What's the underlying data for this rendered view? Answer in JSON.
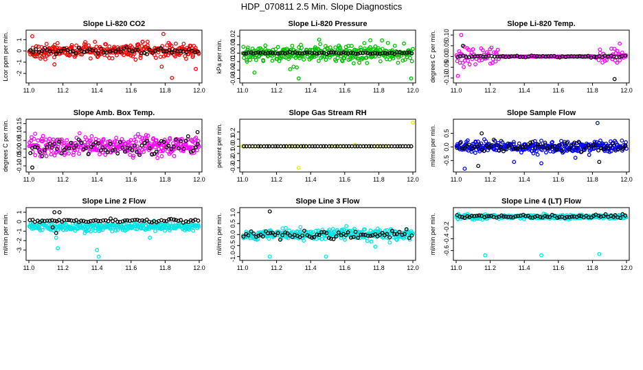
{
  "page_title": "HDP_070811  2.5 Min. Slope Diagnostics",
  "colors": {
    "black": "#000000",
    "red": "#ff0000",
    "green": "#00c000",
    "magenta": "#ff00ff",
    "yellow": "#e8e800",
    "blue": "#0000ff",
    "cyan": "#00e5e5"
  },
  "chart_data": [
    {
      "type": "scatter",
      "title": "Slope Li-820 CO2",
      "ylabel": "Lcor ppm per min.",
      "xlim": [
        11.0,
        12.0
      ],
      "ylim": [
        -2.6,
        1.6
      ],
      "x_ticks": [
        11.0,
        11.2,
        11.4,
        11.6,
        11.8,
        12.0
      ],
      "x_tick_labels": [
        "11.0",
        "11.2",
        "11.4",
        "11.6",
        "11.8",
        "12.0"
      ],
      "y_ticks": [
        -2,
        -1,
        0,
        1
      ],
      "y_tick_labels": [
        "-2",
        "-1",
        "0",
        "1"
      ],
      "series": [
        {
          "name": "main",
          "color": "red",
          "center": 0.0,
          "spread": 0.5,
          "count": 320,
          "outliers": [
            [
              11.02,
              1.3
            ],
            [
              11.79,
              1.5
            ],
            [
              11.78,
              -1.4
            ],
            [
              11.84,
              -2.4
            ],
            [
              11.98,
              -1.6
            ],
            [
              11.15,
              -1.2
            ]
          ]
        },
        {
          "name": "reference",
          "color": "black",
          "center": 0.0,
          "spread": 0.25,
          "count": 60
        }
      ]
    },
    {
      "type": "scatter",
      "title": "Slope Li-820 Pressure",
      "ylabel": "kPa per min.",
      "xlim": [
        11.0,
        12.0
      ],
      "ylim": [
        -0.032,
        0.024
      ],
      "x_ticks": [
        11.0,
        11.2,
        11.4,
        11.6,
        11.8,
        12.0
      ],
      "x_tick_labels": [
        "11.0",
        "11.2",
        "11.4",
        "11.6",
        "11.8",
        "12.0"
      ],
      "y_ticks": [
        -0.03,
        -0.02,
        -0.01,
        0.0,
        0.01,
        0.02
      ],
      "y_tick_labels": [
        "-0.03",
        "-0.02",
        "-0.01",
        "0.00",
        "0.01",
        "0.02"
      ],
      "series": [
        {
          "name": "main",
          "color": "green",
          "center": 0.0,
          "spread": 0.008,
          "count": 320,
          "outliers": [
            [
              11.07,
              -0.023
            ],
            [
              11.33,
              -0.03
            ],
            [
              11.45,
              0.016
            ],
            [
              11.99,
              -0.03
            ],
            [
              11.28,
              -0.019
            ]
          ]
        },
        {
          "name": "reference",
          "color": "black",
          "center": 0.0,
          "spread": 0.001,
          "count": 70
        }
      ]
    },
    {
      "type": "scatter",
      "title": "Slope Li-820 Temp.",
      "ylabel": "degrees C per min.",
      "xlim": [
        11.0,
        12.0
      ],
      "ylim": [
        -0.11,
        0.11
      ],
      "x_ticks": [
        11.0,
        11.2,
        11.4,
        11.6,
        11.8,
        12.0
      ],
      "x_tick_labels": [
        "11.0",
        "11.2",
        "11.4",
        "11.6",
        "11.8",
        "12.0"
      ],
      "y_ticks": [
        -0.1,
        -0.05,
        0.0,
        0.05,
        0.1
      ],
      "y_tick_labels": [
        "-0.10",
        "-0.05",
        "0.00",
        "0.05",
        "0.10"
      ],
      "series": [
        {
          "name": "main",
          "color": "magenta",
          "center": 0.0,
          "spread": 0.03,
          "count": 220,
          "edge_spread": true,
          "outliers": [
            [
              11.01,
              -0.09
            ],
            [
              11.03,
              0.1
            ],
            [
              11.96,
              0.06
            ]
          ]
        },
        {
          "name": "reference",
          "color": "black",
          "center": 0.0,
          "spread": 0.004,
          "count": 60,
          "outliers": [
            [
              11.93,
              -0.105
            ],
            [
              11.04,
              0.05
            ]
          ]
        }
      ]
    },
    {
      "type": "scatter",
      "title": "Slope Amb. Box Temp.",
      "ylabel": "degrees C per min.",
      "xlim": [
        11.0,
        12.0
      ],
      "ylim": [
        -0.12,
        0.16
      ],
      "x_ticks": [
        11.0,
        11.2,
        11.4,
        11.6,
        11.8,
        12.0
      ],
      "x_tick_labels": [
        "11.0",
        "11.2",
        "11.4",
        "11.6",
        "11.8",
        "12.0"
      ],
      "y_ticks": [
        -0.1,
        -0.05,
        0.0,
        0.05,
        0.1,
        0.15
      ],
      "y_tick_labels": [
        "-0.10",
        "-0.05",
        "0.00",
        "0.05",
        "0.10",
        "0.15"
      ],
      "series": [
        {
          "name": "main",
          "color": "magenta",
          "center": 0.02,
          "spread": 0.05,
          "count": 320,
          "outliers": []
        },
        {
          "name": "reference",
          "color": "black",
          "center": 0.01,
          "spread": 0.04,
          "count": 70,
          "outliers": [
            [
              11.02,
              -0.11
            ],
            [
              11.99,
              0.1
            ]
          ]
        }
      ]
    },
    {
      "type": "scatter",
      "title": "Slope Gas Stream RH",
      "ylabel": "percent per min.",
      "xlim": [
        11.0,
        12.0
      ],
      "ylim": [
        -0.32,
        0.34
      ],
      "x_ticks": [
        11.0,
        11.2,
        11.4,
        11.6,
        11.8,
        12.0
      ],
      "x_tick_labels": [
        "11.0",
        "11.2",
        "11.4",
        "11.6",
        "11.8",
        "12.0"
      ],
      "y_ticks": [
        -0.3,
        -0.2,
        -0.1,
        0.0,
        0.1,
        0.2
      ],
      "y_tick_labels": [
        "-0.3",
        "-0.2",
        "-0.1",
        "0.0",
        "0.1",
        "0.2"
      ],
      "series": [
        {
          "name": "main",
          "color": "yellow",
          "center": 0.0,
          "spread": 0.0,
          "count": 60,
          "outliers": [
            [
              11.0,
              0.0
            ],
            [
              11.33,
              -0.3
            ],
            [
              11.66,
              0.02
            ],
            [
              12.0,
              0.33
            ]
          ]
        },
        {
          "name": "reference",
          "color": "black",
          "center": 0.0,
          "spread": 0.0,
          "count": 60
        }
      ]
    },
    {
      "type": "scatter",
      "title": "Slope Sample Flow",
      "ylabel": "ml/min per min.",
      "xlim": [
        11.0,
        12.0
      ],
      "ylim": [
        -0.82,
        0.92
      ],
      "x_ticks": [
        11.0,
        11.2,
        11.4,
        11.6,
        11.8,
        12.0
      ],
      "x_tick_labels": [
        "11.0",
        "11.2",
        "11.4",
        "11.6",
        "11.8",
        "12.0"
      ],
      "y_ticks": [
        -0.5,
        0.0,
        0.5
      ],
      "y_tick_labels": [
        "-0.5",
        "0.0",
        "0.5"
      ],
      "series": [
        {
          "name": "main",
          "color": "blue",
          "center": 0.0,
          "spread": 0.17,
          "count": 320,
          "outliers": [
            [
              11.05,
              -0.8
            ],
            [
              11.83,
              0.88
            ],
            [
              11.34,
              -0.55
            ],
            [
              11.5,
              -0.6
            ],
            [
              11.7,
              -0.4
            ]
          ]
        },
        {
          "name": "reference",
          "color": "black",
          "center": 0.0,
          "spread": 0.15,
          "count": 70,
          "outliers": [
            [
              11.13,
              -0.7
            ],
            [
              11.15,
              0.5
            ],
            [
              11.84,
              -0.55
            ]
          ]
        }
      ]
    },
    {
      "type": "scatter",
      "title": "Slope Line 2 Flow",
      "ylabel": "ml/min per min.",
      "xlim": [
        11.0,
        12.0
      ],
      "ylim": [
        -3.8,
        1.2
      ],
      "x_ticks": [
        11.0,
        11.2,
        11.4,
        11.6,
        11.8,
        12.0
      ],
      "x_tick_labels": [
        "11.0",
        "11.2",
        "11.4",
        "11.6",
        "11.8",
        "12.0"
      ],
      "y_ticks": [
        -3,
        -2,
        -1,
        0,
        1
      ],
      "y_tick_labels": [
        "-3",
        "-2",
        "-1",
        "0",
        "1"
      ],
      "series": [
        {
          "name": "main",
          "color": "cyan",
          "center": -0.55,
          "spread": 0.35,
          "count": 320,
          "outliers": [
            [
              11.17,
              -2.8
            ],
            [
              11.4,
              -3.0
            ],
            [
              11.41,
              -3.7
            ],
            [
              11.16,
              -1.7
            ],
            [
              11.71,
              -1.7
            ]
          ]
        },
        {
          "name": "reference",
          "color": "black",
          "center": 0.1,
          "spread": 0.15,
          "count": 70,
          "outliers": [
            [
              11.15,
              1.0
            ],
            [
              11.18,
              1.0
            ],
            [
              11.16,
              -1.2
            ],
            [
              11.14,
              -0.6
            ]
          ]
        }
      ]
    },
    {
      "type": "scatter",
      "title": "Slope Line 3 Flow",
      "ylabel": "ml/min per min.",
      "xlim": [
        11.0,
        12.0
      ],
      "ylim": [
        -1.05,
        1.1
      ],
      "x_ticks": [
        11.0,
        11.2,
        11.4,
        11.6,
        11.8,
        12.0
      ],
      "x_tick_labels": [
        "11.0",
        "11.2",
        "11.4",
        "11.6",
        "11.8",
        "12.0"
      ],
      "y_ticks": [
        -1.0,
        -0.5,
        0.0,
        0.5,
        1.0
      ],
      "y_tick_labels": [
        "-1.0",
        "-0.5",
        "0.0",
        "0.5",
        "1.0"
      ],
      "series": [
        {
          "name": "main",
          "color": "cyan",
          "center": 0.0,
          "spread": 0.2,
          "count": 320,
          "outliers": [
            [
              11.16,
              -1.0
            ],
            [
              11.49,
              -1.0
            ],
            [
              11.78,
              -0.55
            ]
          ]
        },
        {
          "name": "reference",
          "color": "black",
          "center": 0.0,
          "spread": 0.15,
          "count": 70,
          "outliers": [
            [
              11.16,
              1.05
            ]
          ]
        }
      ]
    },
    {
      "type": "scatter",
      "title": "Slope Line 4 (LT) Flow",
      "ylabel": "ml/min per min.",
      "xlim": [
        11.0,
        12.0
      ],
      "ylim": [
        -0.72,
        0.08
      ],
      "x_ticks": [
        11.0,
        11.2,
        11.4,
        11.6,
        11.8,
        12.0
      ],
      "x_tick_labels": [
        "11.0",
        "11.2",
        "11.4",
        "11.6",
        "11.8",
        "12.0"
      ],
      "y_ticks": [
        -0.6,
        -0.4,
        -0.2
      ],
      "y_tick_labels": [
        "-0.6",
        "-0.4",
        "-0.2"
      ],
      "series": [
        {
          "name": "main",
          "color": "cyan",
          "center": -0.03,
          "spread": 0.03,
          "count": 320,
          "outliers": [
            [
              11.17,
              -0.68
            ],
            [
              11.5,
              -0.68
            ],
            [
              11.84,
              -0.66
            ]
          ]
        },
        {
          "name": "reference",
          "color": "black",
          "center": -0.02,
          "spread": 0.025,
          "count": 70,
          "outliers": []
        }
      ]
    }
  ]
}
